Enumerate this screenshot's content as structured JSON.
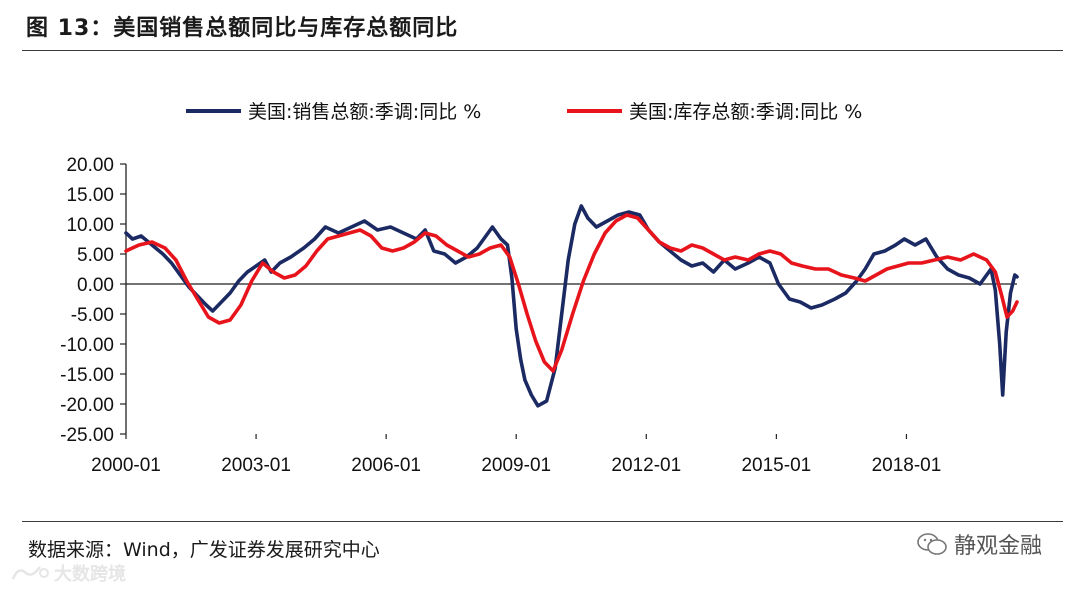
{
  "header": {
    "title": "图 13：美国销售总额同比与库存总额同比"
  },
  "footer": {
    "source": "数据来源：Wind，广发证券发展研究中心"
  },
  "branding": {
    "wechat_text": "静观金融",
    "watermark_text": "大数跨境"
  },
  "colors": {
    "series_sales": "#1b2a63",
    "series_inventory": "#e8141b",
    "axis": "#222222"
  },
  "chart_data": {
    "type": "line",
    "title": "",
    "xlabel": "",
    "ylabel": "",
    "ylim": [
      -25,
      20
    ],
    "xlim": [
      2000.0,
      2020.55
    ],
    "yticks": [
      "20.00",
      "15.00",
      "10.00",
      "5.00",
      "0.00",
      "-5.00",
      "-10.00",
      "-15.00",
      "-20.00",
      "-25.00"
    ],
    "xticks": [
      {
        "label": "2000-01",
        "x": 2000.0
      },
      {
        "label": "2003-01",
        "x": 2003.0
      },
      {
        "label": "2006-01",
        "x": 2006.0
      },
      {
        "label": "2009-01",
        "x": 2009.0
      },
      {
        "label": "2012-01",
        "x": 2012.0
      },
      {
        "label": "2015-01",
        "x": 2015.0
      },
      {
        "label": "2018-01",
        "x": 2018.0
      }
    ],
    "legend": "top",
    "series": [
      {
        "name": "美国:销售总额:季调:同比 %",
        "color": "#1b2a63",
        "points": [
          [
            2000.0,
            8.5
          ],
          [
            2000.15,
            7.5
          ],
          [
            2000.35,
            8.0
          ],
          [
            2000.6,
            6.5
          ],
          [
            2000.85,
            5.0
          ],
          [
            2001.05,
            3.5
          ],
          [
            2001.25,
            1.5
          ],
          [
            2001.45,
            -0.5
          ],
          [
            2001.65,
            -2.0
          ],
          [
            2001.85,
            -3.5
          ],
          [
            2002.0,
            -4.5
          ],
          [
            2002.2,
            -3.0
          ],
          [
            2002.4,
            -1.5
          ],
          [
            2002.6,
            0.5
          ],
          [
            2002.8,
            2.0
          ],
          [
            2003.0,
            3.0
          ],
          [
            2003.2,
            4.0
          ],
          [
            2003.35,
            2.0
          ],
          [
            2003.55,
            3.5
          ],
          [
            2003.8,
            4.5
          ],
          [
            2004.1,
            6.0
          ],
          [
            2004.35,
            7.5
          ],
          [
            2004.6,
            9.5
          ],
          [
            2004.9,
            8.5
          ],
          [
            2005.2,
            9.5
          ],
          [
            2005.5,
            10.5
          ],
          [
            2005.8,
            9.0
          ],
          [
            2006.1,
            9.5
          ],
          [
            2006.4,
            8.5
          ],
          [
            2006.7,
            7.5
          ],
          [
            2006.9,
            9.0
          ],
          [
            2007.1,
            5.5
          ],
          [
            2007.35,
            5.0
          ],
          [
            2007.6,
            3.5
          ],
          [
            2007.85,
            4.5
          ],
          [
            2008.1,
            6.0
          ],
          [
            2008.3,
            8.0
          ],
          [
            2008.45,
            9.5
          ],
          [
            2008.65,
            7.5
          ],
          [
            2008.8,
            6.5
          ],
          [
            2008.9,
            1.0
          ],
          [
            2009.0,
            -7.5
          ],
          [
            2009.1,
            -12.5
          ],
          [
            2009.2,
            -16.0
          ],
          [
            2009.35,
            -18.5
          ],
          [
            2009.5,
            -20.3
          ],
          [
            2009.7,
            -19.5
          ],
          [
            2009.9,
            -14.0
          ],
          [
            2010.05,
            -5.0
          ],
          [
            2010.2,
            4.0
          ],
          [
            2010.35,
            10.0
          ],
          [
            2010.5,
            13.0
          ],
          [
            2010.65,
            11.0
          ],
          [
            2010.85,
            9.5
          ],
          [
            2011.1,
            10.5
          ],
          [
            2011.35,
            11.5
          ],
          [
            2011.6,
            12.0
          ],
          [
            2011.85,
            11.5
          ],
          [
            2012.05,
            9.0
          ],
          [
            2012.3,
            7.0
          ],
          [
            2012.55,
            5.5
          ],
          [
            2012.8,
            4.0
          ],
          [
            2013.05,
            3.0
          ],
          [
            2013.3,
            3.5
          ],
          [
            2013.55,
            2.0
          ],
          [
            2013.8,
            4.0
          ],
          [
            2014.05,
            2.5
          ],
          [
            2014.35,
            3.5
          ],
          [
            2014.6,
            4.5
          ],
          [
            2014.85,
            3.5
          ],
          [
            2015.05,
            0.0
          ],
          [
            2015.3,
            -2.5
          ],
          [
            2015.55,
            -3.0
          ],
          [
            2015.8,
            -4.0
          ],
          [
            2016.05,
            -3.5
          ],
          [
            2016.35,
            -2.5
          ],
          [
            2016.6,
            -1.5
          ],
          [
            2016.85,
            0.5
          ],
          [
            2017.05,
            2.5
          ],
          [
            2017.25,
            5.0
          ],
          [
            2017.5,
            5.5
          ],
          [
            2017.75,
            6.5
          ],
          [
            2017.95,
            7.5
          ],
          [
            2018.2,
            6.5
          ],
          [
            2018.45,
            7.5
          ],
          [
            2018.7,
            4.5
          ],
          [
            2018.95,
            2.5
          ],
          [
            2019.2,
            1.5
          ],
          [
            2019.45,
            1.0
          ],
          [
            2019.7,
            0.0
          ],
          [
            2019.95,
            2.5
          ],
          [
            2020.05,
            -1.0
          ],
          [
            2020.15,
            -10.0
          ],
          [
            2020.22,
            -18.5
          ],
          [
            2020.3,
            -8.0
          ],
          [
            2020.4,
            -1.5
          ],
          [
            2020.5,
            1.5
          ],
          [
            2020.55,
            1.2
          ]
        ]
      },
      {
        "name": "美国:库存总额:季调:同比 %",
        "color": "#e8141b",
        "points": [
          [
            2000.0,
            5.5
          ],
          [
            2000.3,
            6.5
          ],
          [
            2000.6,
            7.0
          ],
          [
            2000.9,
            6.0
          ],
          [
            2001.15,
            4.0
          ],
          [
            2001.4,
            0.5
          ],
          [
            2001.65,
            -2.5
          ],
          [
            2001.9,
            -5.5
          ],
          [
            2002.15,
            -6.5
          ],
          [
            2002.4,
            -6.0
          ],
          [
            2002.65,
            -3.5
          ],
          [
            2002.9,
            0.5
          ],
          [
            2003.15,
            3.5
          ],
          [
            2003.4,
            2.0
          ],
          [
            2003.65,
            1.0
          ],
          [
            2003.9,
            1.5
          ],
          [
            2004.15,
            3.0
          ],
          [
            2004.4,
            5.5
          ],
          [
            2004.65,
            7.5
          ],
          [
            2004.9,
            8.0
          ],
          [
            2005.15,
            8.5
          ],
          [
            2005.4,
            9.0
          ],
          [
            2005.65,
            8.0
          ],
          [
            2005.9,
            6.0
          ],
          [
            2006.15,
            5.5
          ],
          [
            2006.4,
            6.0
          ],
          [
            2006.65,
            7.0
          ],
          [
            2006.9,
            8.5
          ],
          [
            2007.15,
            8.0
          ],
          [
            2007.4,
            6.5
          ],
          [
            2007.65,
            5.5
          ],
          [
            2007.9,
            4.5
          ],
          [
            2008.15,
            5.0
          ],
          [
            2008.4,
            6.0
          ],
          [
            2008.65,
            6.5
          ],
          [
            2008.85,
            4.5
          ],
          [
            2009.05,
            0.0
          ],
          [
            2009.25,
            -5.0
          ],
          [
            2009.45,
            -9.5
          ],
          [
            2009.65,
            -13.0
          ],
          [
            2009.85,
            -14.5
          ],
          [
            2010.05,
            -11.0
          ],
          [
            2010.3,
            -5.0
          ],
          [
            2010.55,
            0.5
          ],
          [
            2010.8,
            5.0
          ],
          [
            2011.05,
            8.5
          ],
          [
            2011.3,
            10.5
          ],
          [
            2011.55,
            11.5
          ],
          [
            2011.8,
            11.0
          ],
          [
            2012.05,
            9.0
          ],
          [
            2012.3,
            7.0
          ],
          [
            2012.55,
            6.0
          ],
          [
            2012.8,
            5.5
          ],
          [
            2013.05,
            6.5
          ],
          [
            2013.3,
            6.0
          ],
          [
            2013.55,
            5.0
          ],
          [
            2013.8,
            4.0
          ],
          [
            2014.05,
            4.5
          ],
          [
            2014.35,
            4.0
          ],
          [
            2014.6,
            5.0
          ],
          [
            2014.85,
            5.5
          ],
          [
            2015.1,
            5.0
          ],
          [
            2015.35,
            3.5
          ],
          [
            2015.6,
            3.0
          ],
          [
            2015.9,
            2.5
          ],
          [
            2016.2,
            2.5
          ],
          [
            2016.5,
            1.5
          ],
          [
            2016.8,
            1.0
          ],
          [
            2017.05,
            0.5
          ],
          [
            2017.3,
            1.5
          ],
          [
            2017.55,
            2.5
          ],
          [
            2017.8,
            3.0
          ],
          [
            2018.05,
            3.5
          ],
          [
            2018.35,
            3.5
          ],
          [
            2018.65,
            4.0
          ],
          [
            2018.95,
            4.5
          ],
          [
            2019.25,
            4.0
          ],
          [
            2019.55,
            5.0
          ],
          [
            2019.85,
            4.0
          ],
          [
            2020.05,
            2.0
          ],
          [
            2020.2,
            -2.0
          ],
          [
            2020.32,
            -5.5
          ],
          [
            2020.45,
            -4.5
          ],
          [
            2020.55,
            -3.0
          ]
        ]
      }
    ]
  }
}
